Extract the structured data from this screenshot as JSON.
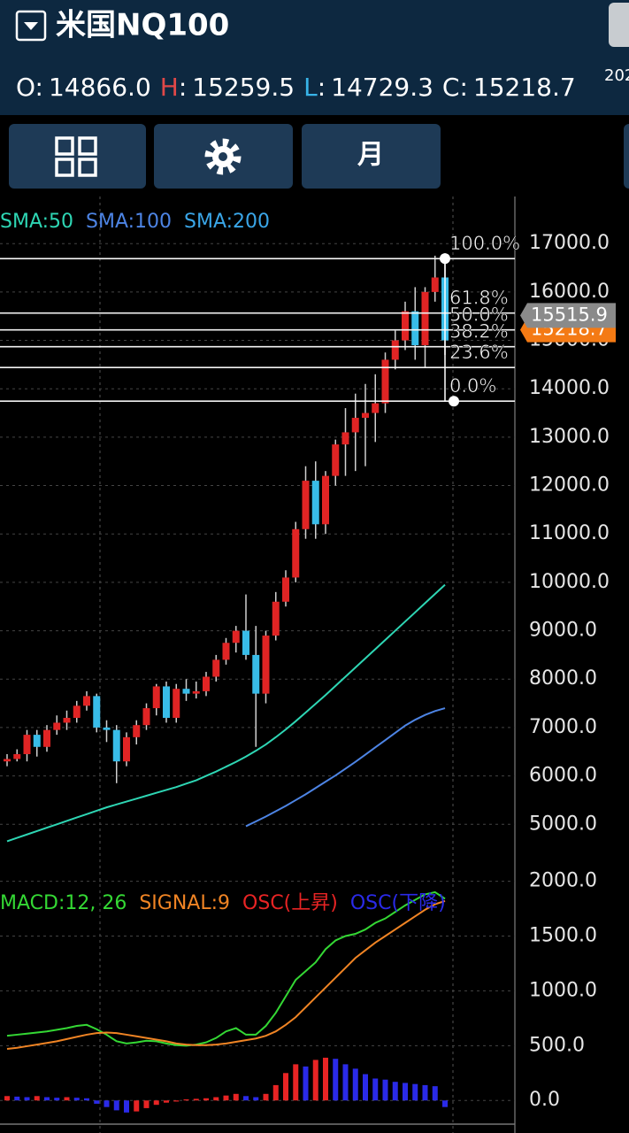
{
  "header": {
    "title": "米国NQ100",
    "clipped_text": "202"
  },
  "ohlc": {
    "separator": ":",
    "items": [
      {
        "key": "O",
        "value": "14866.0",
        "color": "#ffffff"
      },
      {
        "key": "H",
        "value": "15259.5",
        "color": "#e04848"
      },
      {
        "key": "L",
        "value": "14729.3",
        "color": "#38b4e8"
      },
      {
        "key": "C",
        "value": "15218.7",
        "color": "#ffffff"
      }
    ]
  },
  "toolbar": {
    "period_button": "月"
  },
  "chart_data": [
    {
      "type": "candlestick",
      "ylim": [
        4200,
        17900
      ],
      "yticks": [
        {
          "value": 5000,
          "label": "5000.0"
        },
        {
          "value": 6000,
          "label": "6000.0"
        },
        {
          "value": 7000,
          "label": "7000.0"
        },
        {
          "value": 8000,
          "label": "8000.0"
        },
        {
          "value": 9000,
          "label": "9000.0"
        },
        {
          "value": 10000,
          "label": "10000.0"
        },
        {
          "value": 11000,
          "label": "11000.0"
        },
        {
          "value": 12000,
          "label": "12000.0"
        },
        {
          "value": 13000,
          "label": "13000.0"
        },
        {
          "value": 14000,
          "label": "14000.0"
        },
        {
          "value": 15000,
          "label": "15000.0"
        },
        {
          "value": 16000,
          "label": "16000.0"
        },
        {
          "value": 17000,
          "label": "17000.0"
        }
      ],
      "up_color": "#e02424",
      "down_color": "#38bce8",
      "candles": {
        "open": [
          6300,
          6350,
          6450,
          6850,
          6600,
          6950,
          7100,
          7200,
          7450,
          7650,
          7000,
          6950,
          6300,
          6800,
          7050,
          7400,
          7850,
          7200,
          7800,
          7700,
          7750,
          8050,
          8400,
          8750,
          9000,
          8500,
          7700,
          8900,
          9600,
          10100,
          11100,
          12100,
          11200,
          12200,
          12850,
          13100,
          13400,
          13500,
          13700,
          14600,
          15000,
          15600,
          14900,
          16000,
          16300
        ],
        "high": [
          6450,
          6550,
          6950,
          6950,
          7050,
          7250,
          7350,
          7550,
          7750,
          7700,
          7150,
          7050,
          6900,
          7150,
          7500,
          7900,
          7950,
          7900,
          8000,
          7950,
          8150,
          8500,
          8850,
          9100,
          9750,
          9100,
          9000,
          9800,
          10250,
          11250,
          12400,
          12500,
          12300,
          12950,
          13600,
          13900,
          14100,
          14300,
          14750,
          15200,
          15800,
          16100,
          16100,
          16750,
          16800
        ],
        "low": [
          6200,
          6300,
          6300,
          6400,
          6500,
          6850,
          6950,
          7100,
          7350,
          6900,
          6700,
          5850,
          6200,
          6650,
          6950,
          7250,
          7100,
          7100,
          7550,
          7600,
          7650,
          7950,
          8300,
          8550,
          8400,
          6600,
          7500,
          8800,
          9500,
          10000,
          10900,
          10900,
          11000,
          12000,
          12200,
          12300,
          12400,
          12900,
          13500,
          14400,
          14800,
          14600,
          14450,
          15800,
          14700
        ],
        "close": [
          6350,
          6450,
          6850,
          6600,
          6950,
          7100,
          7200,
          7450,
          7650,
          7000,
          6950,
          6300,
          6800,
          7050,
          7400,
          7850,
          7200,
          7800,
          7700,
          7750,
          8050,
          8400,
          8750,
          9000,
          8500,
          7700,
          8900,
          9600,
          10100,
          11100,
          12100,
          11200,
          12200,
          12850,
          13100,
          13400,
          13500,
          13700,
          14600,
          15000,
          15600,
          14900,
          16000,
          16300,
          15000
        ]
      },
      "series": [
        {
          "name": "SMA:50",
          "color": "#2ed6b4",
          "values": [
            4650,
            4720,
            4790,
            4860,
            4930,
            5000,
            5070,
            5140,
            5210,
            5280,
            5350,
            5410,
            5470,
            5530,
            5590,
            5650,
            5710,
            5770,
            5840,
            5910,
            6000,
            6090,
            6190,
            6290,
            6400,
            6520,
            6650,
            6800,
            6960,
            7130,
            7310,
            7490,
            7670,
            7860,
            8050,
            8240,
            8430,
            8620,
            8810,
            9000,
            9190,
            9380,
            9570,
            9760,
            9950
          ]
        },
        {
          "name": "SMA:100",
          "color": "#4d84e4",
          "values": [
            null,
            null,
            null,
            null,
            null,
            null,
            null,
            null,
            null,
            null,
            null,
            null,
            null,
            null,
            null,
            null,
            null,
            null,
            null,
            null,
            null,
            null,
            null,
            null,
            4960,
            5060,
            5160,
            5270,
            5380,
            5500,
            5620,
            5750,
            5880,
            6010,
            6150,
            6290,
            6440,
            6590,
            6740,
            6890,
            7040,
            7160,
            7260,
            7340,
            7400
          ]
        },
        {
          "name": "SMA:200",
          "color": "#3aa6e8",
          "values": [
            null,
            null,
            null,
            null,
            null,
            null,
            null,
            null,
            null,
            null,
            null,
            null,
            null,
            null,
            null,
            null,
            null,
            null,
            null,
            null,
            null,
            null,
            null,
            null,
            null,
            null,
            null,
            null,
            null,
            null,
            null,
            null,
            null,
            null,
            null,
            null,
            null,
            null,
            null,
            null,
            null,
            null,
            null,
            null,
            null
          ]
        }
      ],
      "fibonacci": [
        {
          "label": "100.0%",
          "value": 16690
        },
        {
          "label": "61.8%",
          "value": 15565
        },
        {
          "label": "50.0%",
          "value": 15217
        },
        {
          "label": "38.2%",
          "value": 14869
        },
        {
          "label": "23.6%",
          "value": 14439
        },
        {
          "label": "0.0%",
          "value": 13744
        }
      ],
      "price_tags": [
        {
          "value": 15218.7,
          "label": "15218.7",
          "color": "#f47a14"
        },
        {
          "value": 15515.9,
          "label": "15515.9",
          "color": "#8a8a8a"
        }
      ]
    },
    {
      "type": "macd",
      "ylim": [
        -200,
        2150
      ],
      "yticks": [
        {
          "value": 0,
          "label": "0.0"
        },
        {
          "value": 500,
          "label": "500.0"
        },
        {
          "value": 1000,
          "label": "1000.0"
        },
        {
          "value": 1500,
          "label": "1500.0"
        },
        {
          "value": 2000,
          "label": "2000.0"
        }
      ],
      "series": [
        {
          "name": "MACD:12, 26",
          "color": "#34d834",
          "kind": "line",
          "values": [
            590,
            600,
            610,
            620,
            630,
            645,
            660,
            680,
            690,
            650,
            600,
            540,
            520,
            530,
            545,
            540,
            520,
            505,
            500,
            510,
            530,
            570,
            630,
            660,
            600,
            600,
            680,
            800,
            950,
            1100,
            1180,
            1260,
            1380,
            1460,
            1500,
            1520,
            1560,
            1620,
            1660,
            1720,
            1780,
            1830,
            1880,
            1900,
            1840
          ]
        },
        {
          "name": "SIGNAL:9",
          "color": "#f08424",
          "kind": "line",
          "values": [
            470,
            480,
            495,
            510,
            525,
            540,
            560,
            580,
            600,
            615,
            620,
            615,
            600,
            585,
            570,
            555,
            540,
            520,
            510,
            505,
            505,
            510,
            520,
            535,
            550,
            565,
            590,
            630,
            690,
            760,
            850,
            940,
            1030,
            1120,
            1210,
            1300,
            1370,
            1440,
            1500,
            1560,
            1620,
            1680,
            1740,
            1790,
            1820
          ]
        },
        {
          "name": "OSC(上昇)",
          "color": "#e82424",
          "kind": "bar",
          "values": [
            40,
            null,
            null,
            40,
            null,
            null,
            30,
            null,
            null,
            null,
            null,
            null,
            null,
            -100,
            -70,
            -40,
            -20,
            -10,
            10,
            15,
            20,
            30,
            45,
            60,
            null,
            null,
            60,
            140,
            250,
            330,
            null,
            370,
            390,
            null,
            null,
            null,
            null,
            null,
            null,
            null,
            null,
            null,
            null,
            null,
            null
          ]
        },
        {
          "name": "OSC(下降)",
          "color": "#2a2ae8",
          "kind": "bar",
          "values": [
            null,
            35,
            30,
            null,
            30,
            25,
            null,
            25,
            20,
            -30,
            -60,
            -90,
            -110,
            null,
            null,
            null,
            null,
            null,
            null,
            null,
            null,
            null,
            null,
            null,
            40,
            30,
            null,
            null,
            null,
            null,
            310,
            null,
            null,
            380,
            330,
            290,
            240,
            200,
            190,
            170,
            160,
            150,
            140,
            130,
            -60
          ]
        }
      ]
    }
  ]
}
